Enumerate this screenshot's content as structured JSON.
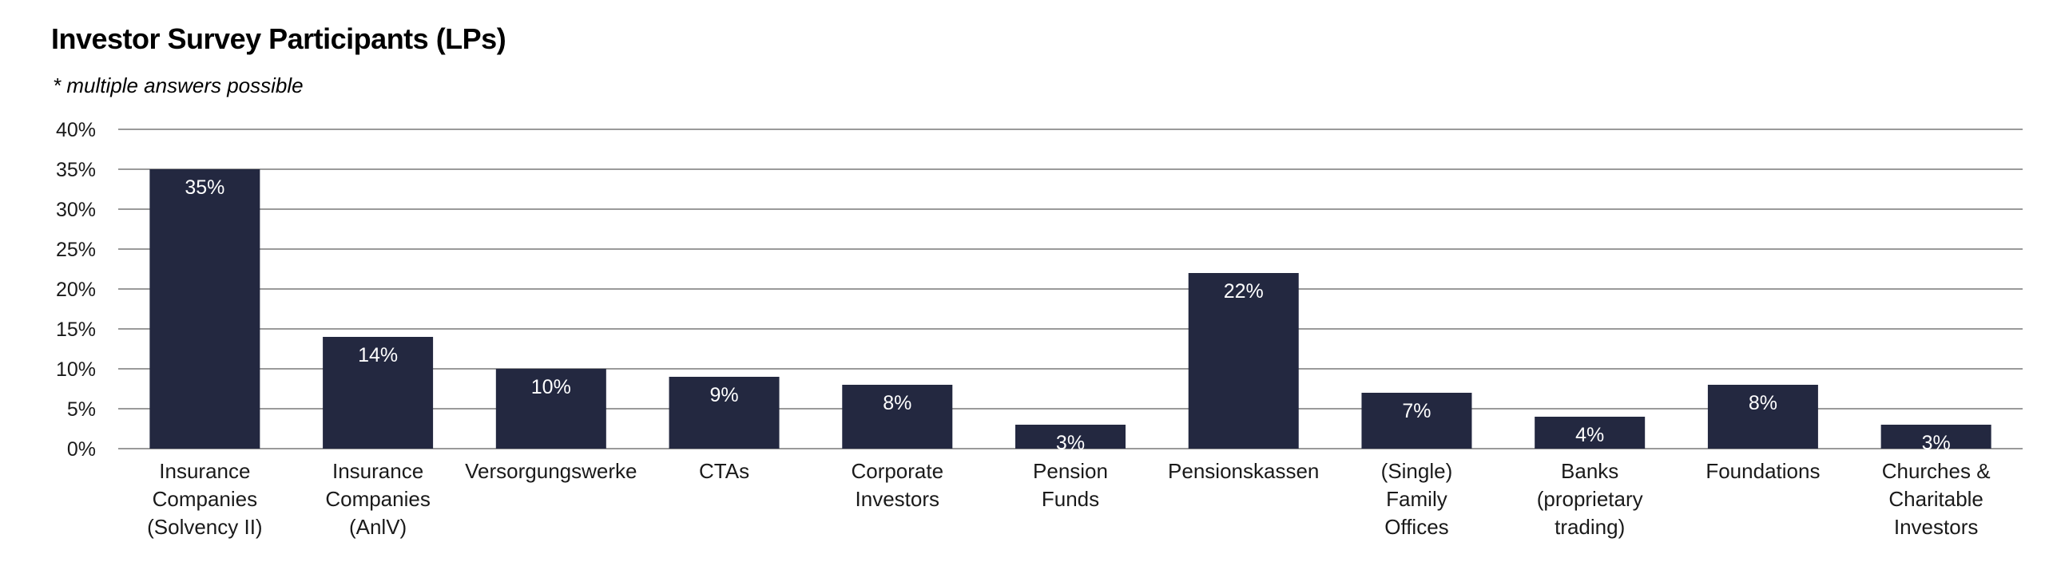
{
  "chart_data": {
    "type": "bar",
    "title": "Investor Survey Participants (LPs)",
    "subtitle": "* multiple answers possible",
    "categories": [
      [
        "Insurance",
        "Companies",
        "(Solvency II)"
      ],
      [
        "Insurance",
        "Companies",
        "(AnlV)"
      ],
      [
        "Versorgungswerke"
      ],
      [
        "CTAs"
      ],
      [
        "Corporate",
        "Investors"
      ],
      [
        "Pension",
        "Funds"
      ],
      [
        "Pensionskassen"
      ],
      [
        "(Single)",
        "Family",
        "Offices"
      ],
      [
        "Banks",
        "(proprietary",
        "trading)"
      ],
      [
        "Foundations"
      ],
      [
        "Churches &",
        "Charitable",
        "Investors"
      ]
    ],
    "values": [
      35,
      14,
      10,
      9,
      8,
      3,
      22,
      7,
      4,
      8,
      3
    ],
    "data_labels": [
      "35%",
      "14%",
      "10%",
      "9%",
      "8%",
      "3%",
      "22%",
      "7%",
      "4%",
      "8%",
      "3%"
    ],
    "ylim": [
      0,
      40
    ],
    "yticks": [
      0,
      5,
      10,
      15,
      20,
      25,
      30,
      35,
      40
    ],
    "ytick_labels": [
      "0%",
      "5%",
      "10%",
      "15%",
      "20%",
      "25%",
      "30%",
      "35%",
      "40%"
    ],
    "xlabel": "",
    "ylabel": "",
    "grid": true,
    "legend": "none",
    "bar_color": "#232840",
    "grid_color": "#9a9a9a"
  }
}
